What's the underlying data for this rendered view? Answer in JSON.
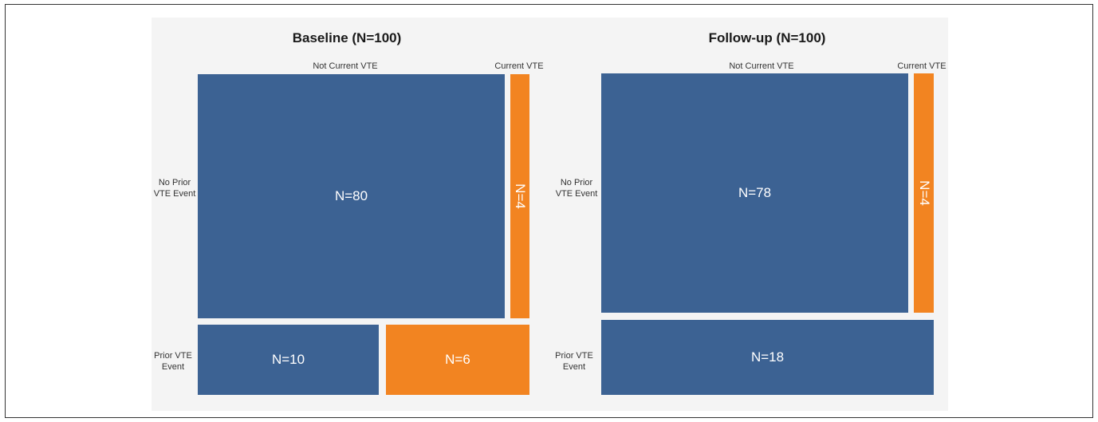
{
  "colors": {
    "not_current": "#3c6293",
    "current": "#f28421",
    "panel_bg": "#f4f4f4"
  },
  "chart_data": [
    {
      "type": "mosaic",
      "title": "Baseline (N=100)",
      "column_labels": [
        "Not Current VTE",
        "Current VTE"
      ],
      "row_labels": [
        "No Prior\nVTE Event",
        "Prior VTE\nEvent"
      ],
      "cells": [
        {
          "row": "No Prior VTE Event",
          "column": "Not Current VTE",
          "value": 80,
          "label": "N=80"
        },
        {
          "row": "No Prior VTE Event",
          "column": "Current VTE",
          "value": 4,
          "label": "N=4"
        },
        {
          "row": "Prior VTE Event",
          "column": "Not Current VTE",
          "value": 10,
          "label": "N=10"
        },
        {
          "row": "Prior VTE Event",
          "column": "Current VTE",
          "value": 6,
          "label": "N=6"
        }
      ]
    },
    {
      "type": "mosaic",
      "title": "Follow-up (N=100)",
      "column_labels": [
        "Not Current VTE",
        "Current VTE"
      ],
      "row_labels": [
        "No Prior\nVTE Event",
        "Prior VTE\nEvent"
      ],
      "cells": [
        {
          "row": "No Prior VTE Event",
          "column": "Not Current VTE",
          "value": 78,
          "label": "N=78"
        },
        {
          "row": "No Prior VTE Event",
          "column": "Current VTE",
          "value": 4,
          "label": "N=4"
        },
        {
          "row": "Prior VTE Event",
          "column": "Not Current VTE",
          "value": 18,
          "label": "N=18"
        }
      ]
    }
  ]
}
